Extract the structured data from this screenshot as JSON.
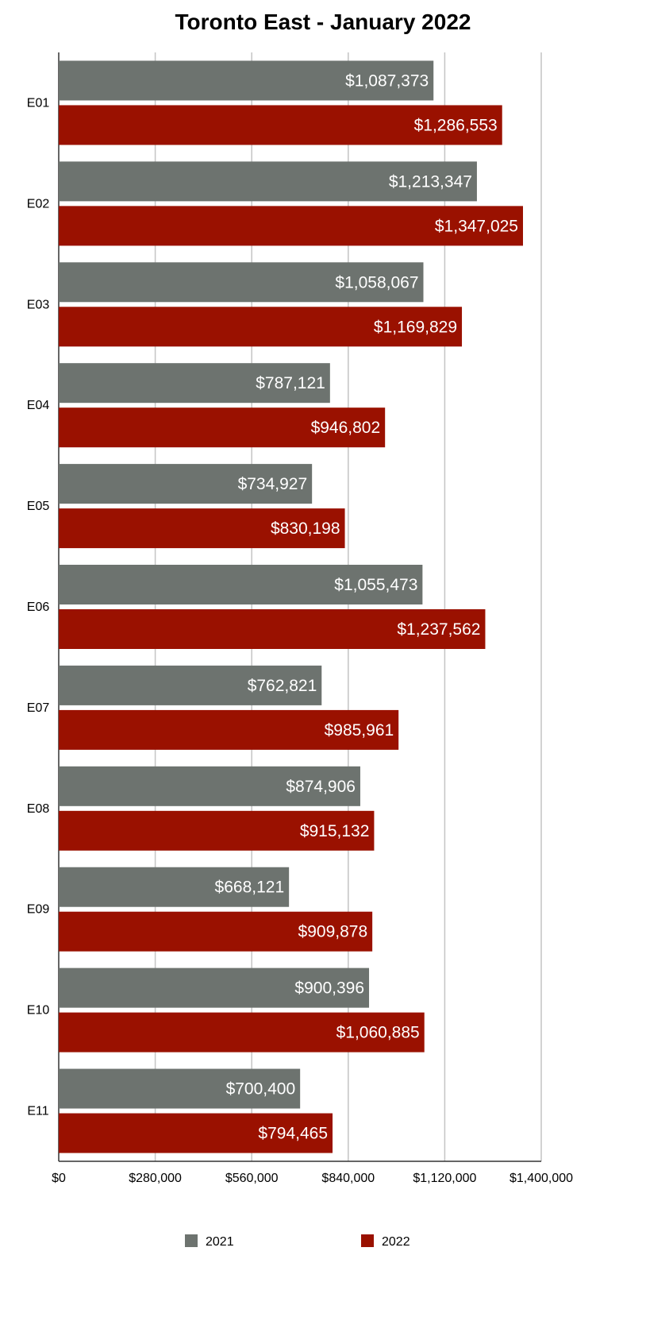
{
  "chart_data": {
    "type": "bar",
    "orientation": "horizontal",
    "title": "Toronto East - January 2022",
    "categories": [
      "E01",
      "E02",
      "E03",
      "E04",
      "E05",
      "E06",
      "E07",
      "E08",
      "E09",
      "E10",
      "E11"
    ],
    "series": [
      {
        "name": "2021",
        "color": "#6d736f",
        "values": [
          1087373,
          1213347,
          1058067,
          787121,
          734927,
          1055473,
          762821,
          874906,
          668121,
          900396,
          700400
        ],
        "labels": [
          "$1,087,373",
          "$1,213,347",
          "$1,058,067",
          "$787,121",
          "$734,927",
          "$1,055,473",
          "$762,821",
          "$874,906",
          "$668,121",
          "$900,396",
          "$700,400"
        ]
      },
      {
        "name": "2022",
        "color": "#9a1100",
        "values": [
          1286553,
          1347025,
          1169829,
          946802,
          830198,
          1237562,
          985961,
          915132,
          909878,
          1060885,
          794465
        ],
        "labels": [
          "$1,286,553",
          "$1,347,025",
          "$1,169,829",
          "$946,802",
          "$830,198",
          "$1,237,562",
          "$985,961",
          "$915,132",
          "$909,878",
          "$1,060,885",
          "$794,465"
        ]
      }
    ],
    "xlim": [
      0,
      1400000
    ],
    "xticks": [
      0,
      280000,
      560000,
      840000,
      1120000,
      1400000
    ],
    "xtick_labels": [
      "$0",
      "$280,000",
      "$560,000",
      "$840,000",
      "$1,120,000",
      "$1,400,000"
    ],
    "grid": true,
    "legend": "bottom"
  }
}
